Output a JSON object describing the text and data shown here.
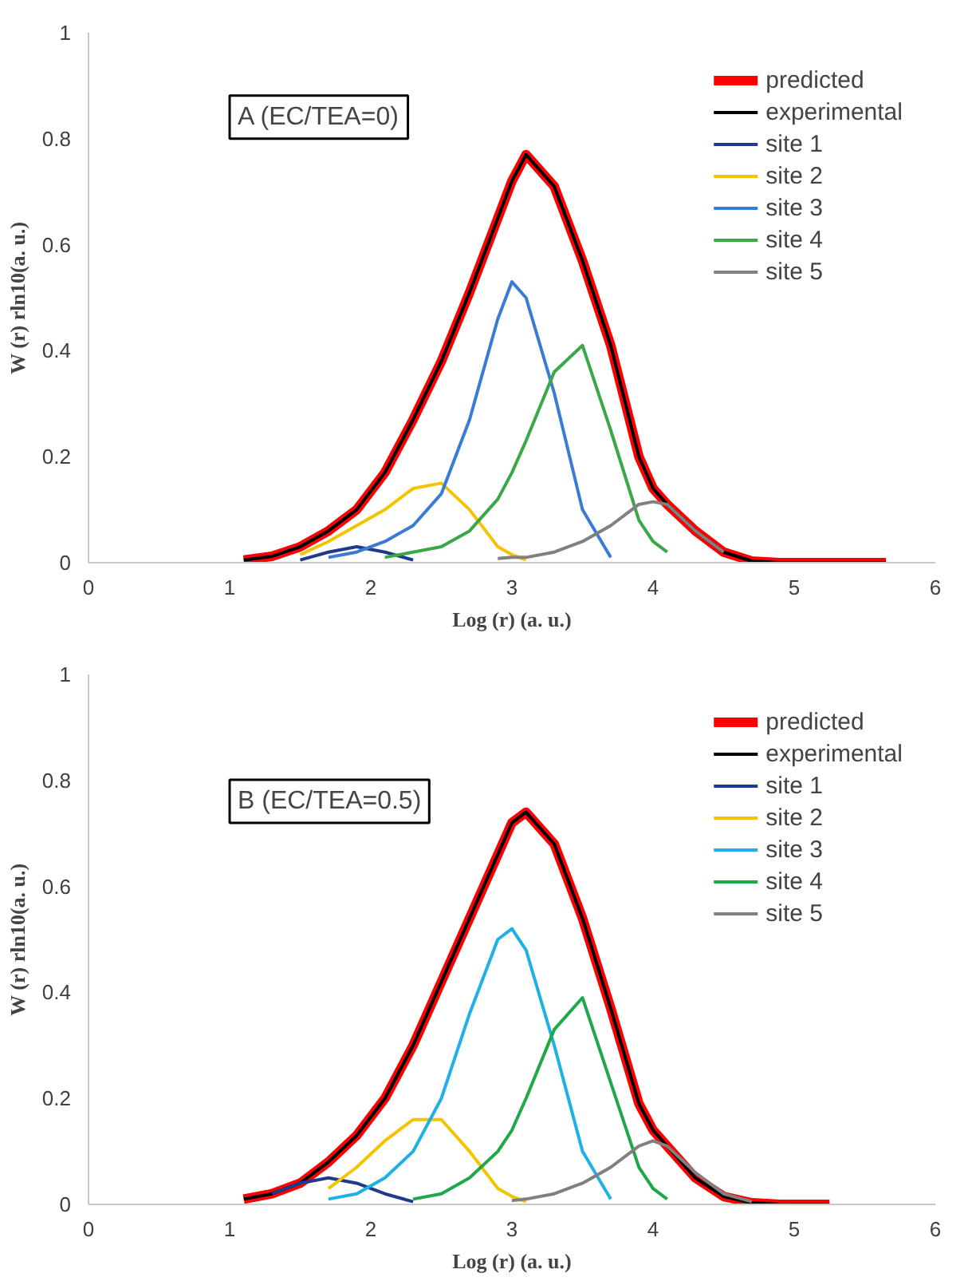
{
  "chart_data": [
    {
      "type": "line",
      "xlabel": "Log (r) (a. u.)",
      "ylabel": "W (r) rln10(a. u.)",
      "annotations": [
        "A (EC/TEA=0)"
      ],
      "x": [
        1.1,
        1.3,
        1.5,
        1.7,
        1.9,
        2.1,
        2.3,
        2.5,
        2.7,
        2.9,
        3.0,
        3.1,
        3.3,
        3.5,
        3.7,
        3.9,
        4.0,
        4.1,
        4.3,
        4.5,
        4.7,
        4.9,
        5.1,
        5.3,
        5.5,
        5.65
      ],
      "xlim": [
        0,
        6
      ],
      "xticks": [
        0,
        1,
        2,
        3,
        4,
        5,
        6
      ],
      "ylim": [
        0,
        1
      ],
      "yticks": [
        0,
        0.2,
        0.4,
        0.6,
        0.8,
        1
      ],
      "grid": false,
      "legend": "top right",
      "line_style": "solid",
      "series": [
        {
          "name": "predicted",
          "color": "#ff0000",
          "values": [
            0.005,
            0.012,
            0.03,
            0.06,
            0.1,
            0.17,
            0.27,
            0.38,
            0.51,
            0.65,
            0.72,
            0.77,
            0.71,
            0.57,
            0.41,
            0.2,
            0.14,
            0.11,
            0.06,
            0.02,
            0.003,
            0,
            0,
            0,
            0,
            0
          ]
        },
        {
          "name": "experimental",
          "color": "#000000",
          "values": [
            0.005,
            0.012,
            0.03,
            0.06,
            0.1,
            0.17,
            0.27,
            0.38,
            0.51,
            0.65,
            0.72,
            0.77,
            0.71,
            0.57,
            0.41,
            0.2,
            0.14,
            0.11,
            0.06,
            0.02,
            0.003,
            0,
            0,
            0,
            0,
            0
          ]
        },
        {
          "name": "site 1",
          "color": "#1f3a8a",
          "values": [
            null,
            null,
            0.005,
            0.02,
            0.03,
            0.02,
            0.005,
            null,
            null,
            null,
            null,
            null,
            null,
            null,
            null,
            null,
            null,
            null,
            null,
            null,
            null,
            null,
            null,
            null,
            null,
            null
          ]
        },
        {
          "name": "site 2",
          "color": "#f5c400",
          "values": [
            null,
            null,
            0.015,
            0.04,
            0.07,
            0.1,
            0.14,
            0.15,
            0.1,
            0.03,
            0.015,
            0.005,
            null,
            null,
            null,
            null,
            null,
            null,
            null,
            null,
            null,
            null,
            null,
            null,
            null,
            null
          ]
        },
        {
          "name": "site 3",
          "color": "#3a7bd5",
          "values": [
            null,
            null,
            null,
            0.01,
            0.02,
            0.04,
            0.07,
            0.13,
            0.27,
            0.46,
            0.53,
            0.5,
            0.32,
            0.1,
            0.01,
            null,
            null,
            null,
            null,
            null,
            null,
            null,
            null,
            null,
            null,
            null
          ]
        },
        {
          "name": "site 4",
          "color": "#3aa845",
          "values": [
            null,
            null,
            null,
            null,
            null,
            0.01,
            0.02,
            0.03,
            0.06,
            0.12,
            0.17,
            0.23,
            0.36,
            0.41,
            0.25,
            0.08,
            0.04,
            0.02,
            null,
            null,
            null,
            null,
            null,
            null,
            null,
            null
          ]
        },
        {
          "name": "site 5",
          "color": "#808080",
          "values": [
            null,
            null,
            null,
            null,
            null,
            null,
            null,
            null,
            null,
            0.008,
            0.01,
            0.01,
            0.02,
            0.04,
            0.07,
            0.11,
            0.115,
            0.11,
            0.06,
            0.02,
            null,
            null,
            null,
            null,
            null,
            null
          ]
        }
      ]
    },
    {
      "type": "line",
      "xlabel": "Log (r) (a. u.)",
      "ylabel": "W (r) rln10(a. u.)",
      "annotations": [
        "B (EC/TEA=0.5)"
      ],
      "x": [
        1.1,
        1.3,
        1.5,
        1.7,
        1.9,
        2.1,
        2.3,
        2.5,
        2.7,
        2.9,
        3.0,
        3.1,
        3.3,
        3.5,
        3.7,
        3.9,
        4.0,
        4.1,
        4.3,
        4.5,
        4.7,
        4.9,
        5.1,
        5.25
      ],
      "xlim": [
        0,
        6
      ],
      "xticks": [
        0,
        1,
        2,
        3,
        4,
        5,
        6
      ],
      "ylim": [
        0,
        1
      ],
      "yticks": [
        0,
        0.2,
        0.4,
        0.6,
        0.8,
        1
      ],
      "grid": false,
      "legend": "top right",
      "line_style": "solid",
      "series": [
        {
          "name": "predicted",
          "color": "#ff0000",
          "values": [
            0.01,
            0.02,
            0.04,
            0.08,
            0.13,
            0.2,
            0.3,
            0.42,
            0.54,
            0.66,
            0.72,
            0.74,
            0.68,
            0.54,
            0.37,
            0.19,
            0.14,
            0.11,
            0.05,
            0.015,
            0.003,
            0,
            0,
            0
          ]
        },
        {
          "name": "experimental",
          "color": "#000000",
          "values": [
            0.01,
            0.02,
            0.04,
            0.08,
            0.13,
            0.2,
            0.3,
            0.42,
            0.54,
            0.66,
            0.72,
            0.74,
            0.68,
            0.54,
            0.37,
            0.19,
            0.14,
            0.11,
            0.05,
            0.015,
            0.003,
            0,
            0,
            0
          ]
        },
        {
          "name": "site 1",
          "color": "#1f3a8a",
          "values": [
            null,
            0.02,
            0.04,
            0.05,
            0.04,
            0.02,
            0.005,
            null,
            null,
            null,
            null,
            null,
            null,
            null,
            null,
            null,
            null,
            null,
            null,
            null,
            null,
            null,
            null,
            null
          ]
        },
        {
          "name": "site 2",
          "color": "#f5c400",
          "values": [
            null,
            null,
            null,
            0.03,
            0.07,
            0.12,
            0.16,
            0.16,
            0.1,
            0.03,
            0.015,
            0.005,
            null,
            null,
            null,
            null,
            null,
            null,
            null,
            null,
            null,
            null,
            null,
            null
          ]
        },
        {
          "name": "site 3",
          "color": "#1fb0e6",
          "values": [
            null,
            null,
            null,
            0.01,
            0.02,
            0.05,
            0.1,
            0.2,
            0.36,
            0.5,
            0.52,
            0.48,
            0.3,
            0.1,
            0.01,
            null,
            null,
            null,
            null,
            null,
            null,
            null,
            null,
            null
          ]
        },
        {
          "name": "site 4",
          "color": "#1fa84a",
          "values": [
            null,
            null,
            null,
            null,
            null,
            null,
            0.01,
            0.02,
            0.05,
            0.1,
            0.14,
            0.2,
            0.33,
            0.39,
            0.23,
            0.07,
            0.03,
            0.01,
            null,
            null,
            null,
            null,
            null,
            null
          ]
        },
        {
          "name": "site 5",
          "color": "#808080",
          "values": [
            null,
            null,
            null,
            null,
            null,
            null,
            null,
            null,
            null,
            null,
            0.007,
            0.01,
            0.02,
            0.04,
            0.07,
            0.11,
            0.12,
            0.11,
            0.06,
            0.02,
            0.005,
            null,
            null,
            null
          ]
        }
      ]
    }
  ]
}
